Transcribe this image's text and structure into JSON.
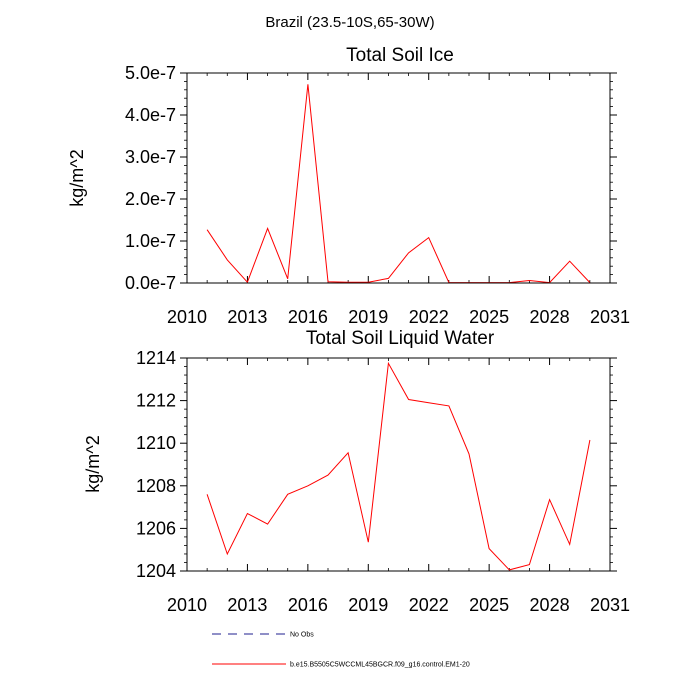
{
  "figure": {
    "suptitle": "Brazil (23.5-10S,65-30W)"
  },
  "chart_data": [
    {
      "type": "line",
      "title": "Total Soil Ice",
      "xlabel": "",
      "ylabel": "kg/m^2",
      "xlim": [
        2010,
        2031
      ],
      "ylim": [
        0,
        5e-07
      ],
      "xticks": [
        2010,
        2013,
        2016,
        2019,
        2022,
        2025,
        2028,
        2031
      ],
      "xtick_labels": [
        "2010",
        "2013",
        "2016",
        "2019",
        "2022",
        "2025",
        "2028",
        "2031"
      ],
      "yticks": [
        0,
        1e-07,
        2e-07,
        3e-07,
        4e-07,
        5e-07
      ],
      "ytick_labels": [
        "0.0e-7",
        "1.0e-7",
        "2.0e-7",
        "3.0e-7",
        "4.0e-7",
        "5.0e-7"
      ],
      "series": [
        {
          "name": "b.e15.B5505C5WCCML45BGCR.f09_g16.control.EM1-20",
          "color": "#ff0000",
          "x": [
            2011,
            2012,
            2013,
            2014,
            2015,
            2016,
            2017,
            2018,
            2019,
            2020,
            2021,
            2022,
            2023,
            2024,
            2025,
            2026,
            2027,
            2028,
            2029,
            2030
          ],
          "y": [
            1.27e-07,
            5.5e-08,
            2e-09,
            1.3e-07,
            1e-08,
            4.73e-07,
            3e-09,
            2e-09,
            2e-09,
            1.1e-08,
            7.2e-08,
            1.08e-07,
            1e-09,
            1e-09,
            1e-09,
            1e-09,
            6e-09,
            1e-09,
            5.2e-08,
            1e-09
          ]
        }
      ]
    },
    {
      "type": "line",
      "title": "Total Soil Liquid Water",
      "xlabel": "",
      "ylabel": "kg/m^2",
      "xlim": [
        2010,
        2031
      ],
      "ylim": [
        1204,
        1214
      ],
      "xticks": [
        2010,
        2013,
        2016,
        2019,
        2022,
        2025,
        2028,
        2031
      ],
      "xtick_labels": [
        "2010",
        "2013",
        "2016",
        "2019",
        "2022",
        "2025",
        "2028",
        "2031"
      ],
      "yticks": [
        1204,
        1206,
        1208,
        1210,
        1212,
        1214
      ],
      "ytick_labels": [
        "1204",
        "1206",
        "1208",
        "1210",
        "1212",
        "1214"
      ],
      "series": [
        {
          "name": "b.e15.B5505C5WCCML45BGCR.f09_g16.control.EM1-20",
          "color": "#ff0000",
          "x": [
            2011,
            2012,
            2013,
            2014,
            2015,
            2016,
            2017,
            2018,
            2019,
            2020,
            2021,
            2022,
            2023,
            2024,
            2025,
            2026,
            2027,
            2028,
            2029,
            2030
          ],
          "y": [
            1207.6,
            1204.8,
            1206.7,
            1206.2,
            1207.6,
            1208.0,
            1208.5,
            1209.55,
            1205.35,
            1213.75,
            1212.05,
            1211.9,
            1211.75,
            1209.5,
            1205.05,
            1204.05,
            1204.3,
            1207.35,
            1205.25,
            1210.15
          ]
        }
      ]
    }
  ],
  "legend": {
    "placement": "bottom",
    "entries": [
      {
        "label": "No Obs",
        "color": "#1f1f8f",
        "style": "dashed"
      },
      {
        "label": "b.e15.B5505C5WCCML45BGCR.f09_g16.control.EM1-20",
        "color": "#ff0000",
        "style": "solid"
      }
    ]
  }
}
